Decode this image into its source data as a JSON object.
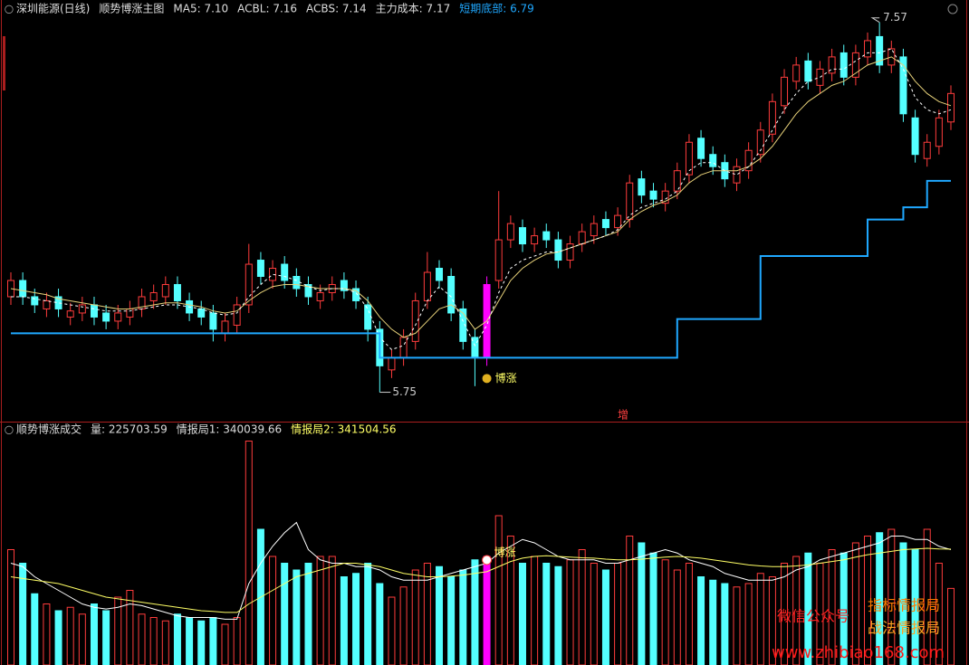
{
  "header": {
    "items": [
      {
        "text": "深圳能源(日线)",
        "color": "#dddddd"
      },
      {
        "text": "顺势博涨主图",
        "color": "#dddddd"
      },
      {
        "text": "MA5: 7.10",
        "color": "#dddddd"
      },
      {
        "text": "ACBL: 7.16",
        "color": "#dddddd"
      },
      {
        "text": "ACBS: 7.14",
        "color": "#dddddd"
      },
      {
        "text": "主力成本: 7.17",
        "color": "#dddddd"
      },
      {
        "text": "短期底部: 6.79",
        "color": "#1fa8ff"
      }
    ]
  },
  "volume_header": {
    "items": [
      {
        "text": "顺势博涨成交",
        "color": "#dddddd"
      },
      {
        "text": "量: 225703.59",
        "color": "#dddddd"
      },
      {
        "text": "情报局1: 340039.66",
        "color": "#dddddd"
      },
      {
        "text": "情报局2: 341504.56",
        "color": "#ffff66"
      }
    ]
  },
  "annotations": {
    "signal": "博涨",
    "signal_volume": "博涨",
    "marker": "增"
  },
  "watermark": {
    "account": "微信公众号",
    "line1": "指标情报局",
    "line2": "战法情报局",
    "url": "www.zhibiao168.com"
  },
  "chart_data": [
    {
      "type": "candlestick",
      "up_color": "#ff3c3c",
      "down_color": "#54ffff",
      "highlight": {
        "index": 40,
        "color": "#ff00ff"
      },
      "ylim": [
        5.61,
        7.68
      ],
      "open": [
        6.22,
        6.3,
        6.22,
        6.16,
        6.22,
        6.12,
        6.14,
        6.18,
        6.14,
        6.1,
        6.12,
        6.16,
        6.2,
        6.22,
        6.28,
        6.2,
        6.16,
        6.14,
        6.04,
        6.08,
        6.18,
        6.4,
        6.3,
        6.38,
        6.32,
        6.28,
        6.2,
        6.24,
        6.3,
        6.26,
        6.18,
        6.06,
        5.86,
        5.92,
        6.0,
        6.2,
        6.36,
        6.32,
        6.16,
        6.02,
        5.92,
        6.3,
        6.5,
        6.56,
        6.48,
        6.54,
        6.5,
        6.4,
        6.48,
        6.52,
        6.6,
        6.56,
        6.6,
        6.8,
        6.74,
        6.68,
        6.74,
        6.82,
        7.0,
        6.92,
        6.88,
        6.78,
        6.84,
        6.92,
        7.02,
        7.16,
        7.28,
        7.38,
        7.26,
        7.32,
        7.42,
        7.3,
        7.4,
        7.5,
        7.36,
        7.4,
        7.1,
        6.9,
        6.96,
        7.08
      ],
      "high": [
        6.34,
        6.34,
        6.26,
        6.24,
        6.26,
        6.19,
        6.22,
        6.22,
        6.18,
        6.18,
        6.2,
        6.26,
        6.28,
        6.32,
        6.32,
        6.24,
        6.2,
        6.18,
        6.14,
        6.22,
        6.48,
        6.44,
        6.4,
        6.42,
        6.36,
        6.32,
        6.28,
        6.32,
        6.34,
        6.3,
        6.22,
        6.1,
        5.96,
        6.06,
        6.24,
        6.44,
        6.4,
        6.36,
        6.2,
        6.06,
        6.32,
        6.74,
        6.62,
        6.6,
        6.56,
        6.58,
        6.54,
        6.52,
        6.58,
        6.62,
        6.64,
        6.66,
        6.82,
        6.84,
        6.78,
        6.78,
        6.88,
        7.02,
        7.04,
        6.96,
        6.92,
        6.9,
        6.98,
        7.08,
        7.22,
        7.34,
        7.4,
        7.42,
        7.38,
        7.44,
        7.46,
        7.46,
        7.52,
        7.57,
        7.48,
        7.44,
        7.14,
        7.02,
        7.14,
        7.26
      ],
      "low": [
        6.18,
        6.18,
        6.14,
        6.12,
        6.12,
        6.08,
        6.1,
        6.08,
        6.06,
        6.06,
        6.08,
        6.12,
        6.16,
        6.18,
        6.16,
        6.1,
        6.08,
        6.0,
        6.0,
        6.04,
        6.14,
        6.28,
        6.26,
        6.26,
        6.22,
        6.18,
        6.16,
        6.2,
        6.21,
        6.16,
        6.0,
        5.75,
        5.82,
        5.88,
        5.96,
        6.16,
        6.26,
        6.1,
        5.96,
        5.78,
        5.88,
        6.26,
        6.46,
        6.44,
        6.44,
        6.46,
        6.36,
        6.36,
        6.44,
        6.48,
        6.52,
        6.52,
        6.56,
        6.68,
        6.66,
        6.64,
        6.7,
        6.78,
        6.86,
        6.82,
        6.76,
        6.74,
        6.8,
        6.88,
        6.98,
        7.12,
        7.24,
        7.24,
        7.22,
        7.28,
        7.26,
        7.26,
        7.36,
        7.32,
        7.32,
        7.08,
        6.88,
        6.86,
        6.92,
        7.04
      ],
      "close": [
        6.3,
        6.22,
        6.18,
        6.2,
        6.16,
        6.15,
        6.18,
        6.12,
        6.1,
        6.14,
        6.16,
        6.22,
        6.24,
        6.28,
        6.2,
        6.14,
        6.12,
        6.06,
        6.1,
        6.18,
        6.38,
        6.32,
        6.36,
        6.3,
        6.26,
        6.22,
        6.24,
        6.28,
        6.25,
        6.2,
        6.06,
        5.88,
        5.92,
        6.02,
        6.2,
        6.34,
        6.3,
        6.14,
        6.0,
        5.92,
        6.28,
        6.5,
        6.58,
        6.48,
        6.52,
        6.5,
        6.4,
        6.48,
        6.54,
        6.58,
        6.56,
        6.62,
        6.78,
        6.72,
        6.7,
        6.74,
        6.84,
        6.98,
        6.9,
        6.86,
        6.8,
        6.86,
        6.94,
        7.04,
        7.18,
        7.3,
        7.36,
        7.28,
        7.34,
        7.4,
        7.3,
        7.42,
        7.48,
        7.36,
        7.44,
        7.12,
        6.92,
        6.98,
        7.1,
        7.22
      ],
      "series": [
        {
          "name": "ACBL",
          "color": "#e8d27a",
          "dash": false,
          "values": [
            6.26,
            6.25,
            6.24,
            6.23,
            6.21,
            6.2,
            6.19,
            6.18,
            6.17,
            6.16,
            6.16,
            6.17,
            6.18,
            6.19,
            6.19,
            6.18,
            6.17,
            6.15,
            6.14,
            6.15,
            6.2,
            6.24,
            6.27,
            6.28,
            6.28,
            6.27,
            6.26,
            6.26,
            6.26,
            6.25,
            6.2,
            6.12,
            6.06,
            6.02,
            6.04,
            6.1,
            6.16,
            6.18,
            6.14,
            6.06,
            6.1,
            6.2,
            6.3,
            6.36,
            6.4,
            6.43,
            6.44,
            6.46,
            6.48,
            6.5,
            6.52,
            6.54,
            6.6,
            6.64,
            6.67,
            6.69,
            6.72,
            6.78,
            6.82,
            6.84,
            6.84,
            6.84,
            6.86,
            6.9,
            6.96,
            7.04,
            7.12,
            7.18,
            7.22,
            7.26,
            7.28,
            7.32,
            7.36,
            7.38,
            7.4,
            7.36,
            7.28,
            7.22,
            7.18,
            7.16
          ]
        },
        {
          "name": "ACBS",
          "color": "#ffffff",
          "dash": true,
          "values": [
            6.22,
            6.22,
            6.21,
            6.2,
            6.19,
            6.18,
            6.17,
            6.16,
            6.15,
            6.15,
            6.15,
            6.16,
            6.17,
            6.18,
            6.18,
            6.17,
            6.16,
            6.14,
            6.13,
            6.14,
            6.22,
            6.28,
            6.33,
            6.32,
            6.3,
            6.27,
            6.25,
            6.26,
            6.26,
            6.24,
            6.16,
            6.02,
            5.96,
            5.98,
            6.08,
            6.2,
            6.27,
            6.22,
            6.1,
            5.98,
            6.08,
            6.24,
            6.36,
            6.4,
            6.42,
            6.44,
            6.44,
            6.46,
            6.48,
            6.5,
            6.52,
            6.55,
            6.62,
            6.66,
            6.68,
            6.7,
            6.74,
            6.84,
            6.88,
            6.88,
            6.84,
            6.82,
            6.86,
            6.94,
            7.04,
            7.14,
            7.22,
            7.28,
            7.3,
            7.34,
            7.34,
            7.38,
            7.42,
            7.42,
            7.44,
            7.34,
            7.2,
            7.14,
            7.12,
            7.14
          ]
        },
        {
          "name": "短期底部",
          "color": "#1fa8ff",
          "dash": false,
          "step": true,
          "values": [
            6.04,
            6.04,
            6.04,
            6.04,
            6.04,
            6.04,
            6.04,
            6.04,
            6.04,
            6.04,
            6.04,
            6.04,
            6.04,
            6.04,
            6.04,
            6.04,
            6.04,
            6.04,
            6.04,
            6.04,
            6.04,
            6.04,
            6.04,
            6.04,
            6.04,
            6.04,
            6.04,
            6.04,
            6.04,
            6.04,
            6.04,
            5.92,
            5.92,
            5.92,
            5.92,
            5.92,
            5.92,
            5.92,
            5.92,
            5.92,
            5.92,
            5.92,
            5.92,
            5.92,
            5.92,
            5.92,
            5.92,
            5.92,
            5.92,
            5.92,
            5.92,
            5.92,
            5.92,
            5.92,
            5.92,
            5.92,
            6.11,
            6.11,
            6.11,
            6.11,
            6.11,
            6.11,
            6.11,
            6.42,
            6.42,
            6.42,
            6.42,
            6.42,
            6.42,
            6.42,
            6.42,
            6.42,
            6.6,
            6.6,
            6.6,
            6.66,
            6.66,
            6.79,
            6.79,
            6.79
          ]
        }
      ]
    },
    {
      "type": "bar",
      "ylim": [
        0,
        680000
      ],
      "values": [
        340000,
        300000,
        210000,
        180000,
        160000,
        170000,
        150000,
        180000,
        160000,
        200000,
        220000,
        150000,
        140000,
        130000,
        150000,
        140000,
        130000,
        140000,
        120000,
        140000,
        660000,
        400000,
        320000,
        300000,
        280000,
        300000,
        320000,
        320000,
        260000,
        270000,
        300000,
        240000,
        200000,
        230000,
        280000,
        300000,
        290000,
        260000,
        280000,
        310000,
        320000,
        440000,
        380000,
        300000,
        320000,
        300000,
        290000,
        310000,
        340000,
        300000,
        280000,
        300000,
        380000,
        360000,
        330000,
        310000,
        280000,
        300000,
        260000,
        250000,
        240000,
        230000,
        240000,
        270000,
        260000,
        300000,
        320000,
        330000,
        300000,
        340000,
        330000,
        360000,
        380000,
        390000,
        400000,
        360000,
        340000,
        400000,
        300000,
        225703.59
      ],
      "series": [
        {
          "name": "情报局1",
          "color": "#ffffff",
          "values": [
            300000,
            290000,
            260000,
            240000,
            220000,
            200000,
            180000,
            170000,
            165000,
            170000,
            180000,
            175000,
            165000,
            155000,
            145000,
            140000,
            140000,
            140000,
            135000,
            135000,
            240000,
            300000,
            350000,
            390000,
            420000,
            340000,
            310000,
            300000,
            300000,
            290000,
            290000,
            280000,
            260000,
            250000,
            250000,
            250000,
            260000,
            270000,
            280000,
            290000,
            300000,
            330000,
            350000,
            370000,
            360000,
            340000,
            320000,
            310000,
            310000,
            310000,
            300000,
            300000,
            310000,
            320000,
            330000,
            340000,
            330000,
            310000,
            300000,
            290000,
            270000,
            260000,
            250000,
            250000,
            250000,
            260000,
            280000,
            290000,
            310000,
            320000,
            330000,
            340000,
            350000,
            360000,
            380000,
            380000,
            370000,
            370000,
            350000,
            340039.66
          ]
        },
        {
          "name": "情报局2",
          "color": "#ffff66",
          "values": [
            260000,
            255000,
            250000,
            245000,
            240000,
            230000,
            220000,
            210000,
            200000,
            195000,
            190000,
            185000,
            180000,
            175000,
            170000,
            165000,
            160000,
            158000,
            155000,
            155000,
            180000,
            200000,
            220000,
            240000,
            260000,
            270000,
            280000,
            290000,
            300000,
            300000,
            295000,
            290000,
            280000,
            270000,
            265000,
            260000,
            260000,
            262000,
            265000,
            270000,
            275000,
            290000,
            305000,
            315000,
            320000,
            322000,
            320000,
            318000,
            316000,
            315000,
            312000,
            310000,
            310000,
            312000,
            315000,
            318000,
            320000,
            318000,
            315000,
            310000,
            305000,
            300000,
            295000,
            292000,
            290000,
            290000,
            292000,
            295000,
            300000,
            305000,
            310000,
            318000,
            325000,
            330000,
            335000,
            340000,
            342000,
            344000,
            342000,
            341504.56
          ]
        }
      ]
    }
  ]
}
